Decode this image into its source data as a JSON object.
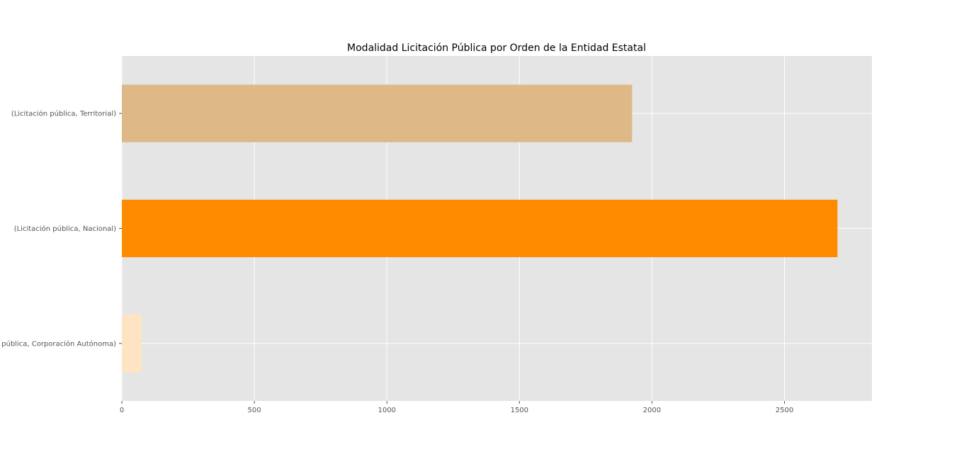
{
  "chart_data": {
    "type": "bar",
    "orientation": "horizontal",
    "title": "Modalidad Licitación Pública por Orden de la Entidad Estatal",
    "xlabel": "",
    "ylabel": "",
    "categories": [
      "(Licitación pública, Corporación Autónoma)",
      "(Licitación pública, Nacional)",
      "(Licitación pública, Territorial)"
    ],
    "values": [
      75,
      2700,
      1925
    ],
    "bar_colors": [
      "#ffe4c4",
      "#ff8c00",
      "#deb887"
    ],
    "xlim": [
      0,
      2830
    ],
    "xticks": [
      0,
      500,
      1000,
      1500,
      2000,
      2500
    ],
    "grid": true,
    "legend": "none",
    "colors": {
      "plot_background": "#e5e5e5",
      "grid": "#ffffff",
      "tick_label": "#555555"
    }
  }
}
